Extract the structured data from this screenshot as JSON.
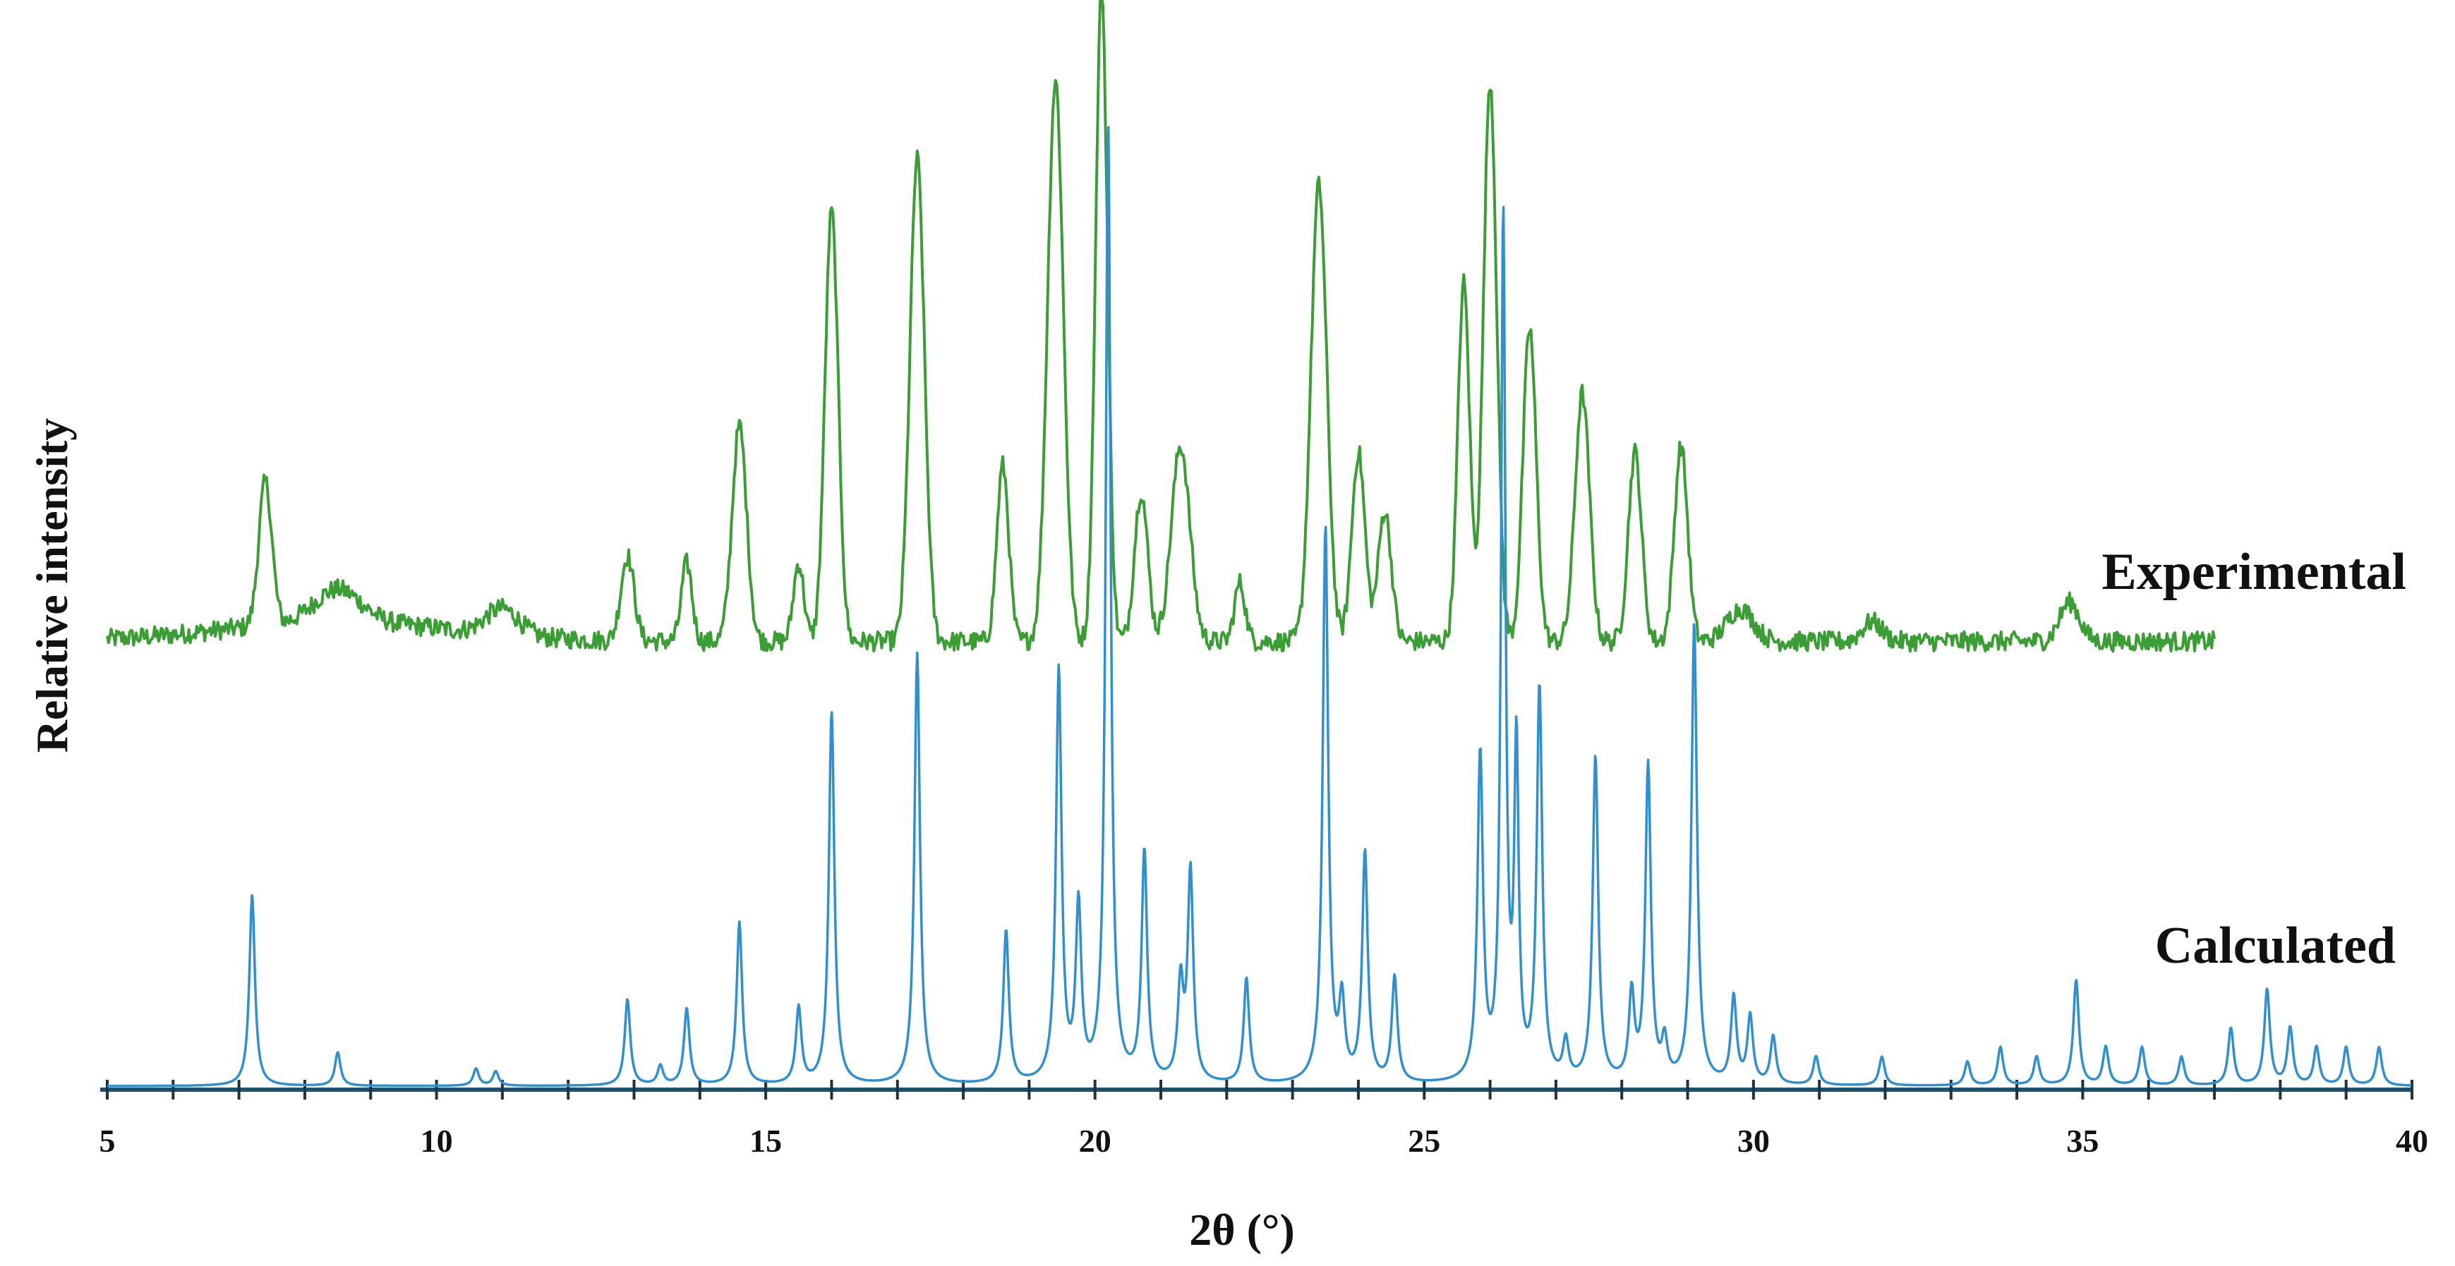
{
  "chart_data": {
    "type": "line",
    "xlabel": "2θ (°)",
    "ylabel": "Relative intensity",
    "xlim": [
      5,
      40
    ],
    "xticks": [
      5,
      10,
      15,
      20,
      25,
      30,
      35,
      40
    ],
    "grid": false,
    "yticks_shown": false,
    "series": [
      {
        "name": "Experimental",
        "color": "#3a9e35",
        "baseline": 0.06,
        "x_range": [
          5,
          37
        ],
        "peaks": [
          [
            7.4,
            0.22,
            0.1
          ],
          [
            8.5,
            0.05,
            0.35
          ],
          [
            11.0,
            0.04,
            0.25
          ],
          [
            12.9,
            0.13,
            0.1
          ],
          [
            13.8,
            0.12,
            0.08
          ],
          [
            14.6,
            0.33,
            0.11
          ],
          [
            15.5,
            0.12,
            0.08
          ],
          [
            16.0,
            0.66,
            0.1
          ],
          [
            17.3,
            0.74,
            0.11
          ],
          [
            18.6,
            0.27,
            0.09
          ],
          [
            19.4,
            0.86,
            0.12
          ],
          [
            20.1,
            1.0,
            0.09
          ],
          [
            20.7,
            0.23,
            0.1
          ],
          [
            21.3,
            0.3,
            0.14
          ],
          [
            22.2,
            0.09,
            0.08
          ],
          [
            23.4,
            0.7,
            0.12
          ],
          [
            24.0,
            0.29,
            0.1
          ],
          [
            24.4,
            0.2,
            0.1
          ],
          [
            25.6,
            0.55,
            0.09
          ],
          [
            26.0,
            0.86,
            0.1
          ],
          [
            26.6,
            0.48,
            0.1
          ],
          [
            27.4,
            0.38,
            0.11
          ],
          [
            28.2,
            0.29,
            0.1
          ],
          [
            28.9,
            0.3,
            0.1
          ],
          [
            29.8,
            0.05,
            0.2
          ],
          [
            31.8,
            0.03,
            0.15
          ],
          [
            34.8,
            0.06,
            0.15
          ]
        ]
      },
      {
        "name": "Calculated",
        "color": "#2f8fd1",
        "baseline": 0.0,
        "x_range": [
          5,
          40
        ],
        "peaks": [
          [
            7.2,
            0.2,
            0.05
          ],
          [
            8.5,
            0.035,
            0.05
          ],
          [
            10.6,
            0.018,
            0.05
          ],
          [
            10.9,
            0.015,
            0.05
          ],
          [
            12.9,
            0.09,
            0.05
          ],
          [
            13.4,
            0.02,
            0.05
          ],
          [
            13.8,
            0.08,
            0.05
          ],
          [
            14.6,
            0.17,
            0.05
          ],
          [
            15.5,
            0.08,
            0.05
          ],
          [
            16.0,
            0.39,
            0.05
          ],
          [
            17.3,
            0.45,
            0.05
          ],
          [
            18.65,
            0.16,
            0.05
          ],
          [
            19.45,
            0.43,
            0.05
          ],
          [
            19.75,
            0.18,
            0.05
          ],
          [
            20.2,
            1.0,
            0.045
          ],
          [
            20.75,
            0.24,
            0.05
          ],
          [
            21.3,
            0.1,
            0.05
          ],
          [
            21.45,
            0.22,
            0.05
          ],
          [
            22.3,
            0.11,
            0.05
          ],
          [
            23.5,
            0.58,
            0.05
          ],
          [
            23.75,
            0.08,
            0.05
          ],
          [
            24.1,
            0.24,
            0.05
          ],
          [
            24.55,
            0.11,
            0.05
          ],
          [
            25.85,
            0.34,
            0.05
          ],
          [
            26.2,
            0.9,
            0.04
          ],
          [
            26.4,
            0.34,
            0.04
          ],
          [
            26.75,
            0.41,
            0.05
          ],
          [
            27.15,
            0.04,
            0.05
          ],
          [
            27.6,
            0.34,
            0.05
          ],
          [
            28.15,
            0.09,
            0.05
          ],
          [
            28.4,
            0.33,
            0.05
          ],
          [
            28.65,
            0.04,
            0.05
          ],
          [
            29.1,
            0.48,
            0.05
          ],
          [
            29.7,
            0.09,
            0.05
          ],
          [
            29.95,
            0.07,
            0.05
          ],
          [
            30.3,
            0.05,
            0.05
          ],
          [
            30.95,
            0.03,
            0.05
          ],
          [
            31.95,
            0.03,
            0.05
          ],
          [
            33.25,
            0.025,
            0.05
          ],
          [
            33.75,
            0.04,
            0.05
          ],
          [
            34.3,
            0.03,
            0.05
          ],
          [
            34.9,
            0.11,
            0.05
          ],
          [
            35.35,
            0.04,
            0.05
          ],
          [
            35.9,
            0.04,
            0.05
          ],
          [
            36.5,
            0.03,
            0.05
          ],
          [
            37.25,
            0.06,
            0.05
          ],
          [
            37.8,
            0.1,
            0.05
          ],
          [
            38.15,
            0.06,
            0.05
          ],
          [
            38.55,
            0.04,
            0.05
          ],
          [
            39.0,
            0.04,
            0.05
          ],
          [
            39.5,
            0.04,
            0.05
          ]
        ]
      }
    ]
  }
}
